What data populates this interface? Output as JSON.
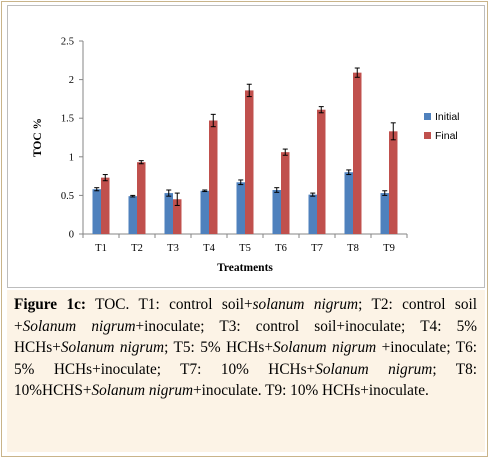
{
  "chart_data": {
    "type": "bar",
    "title": "",
    "xlabel": "Treatments",
    "ylabel": "TOC %",
    "ylim": [
      0,
      2.5
    ],
    "yticks": [
      "0",
      "0.5",
      "1",
      "1.5",
      "2",
      "2.5"
    ],
    "grid": false,
    "legend_position": "right",
    "categories": [
      "T1",
      "T2",
      "T3",
      "T4",
      "T5",
      "T6",
      "T7",
      "T8",
      "T9"
    ],
    "series": [
      {
        "name": "Initial",
        "color": "#4f81bd",
        "values": [
          0.58,
          0.49,
          0.53,
          0.56,
          0.67,
          0.57,
          0.51,
          0.8,
          0.53
        ],
        "errors": [
          0.02,
          0.01,
          0.04,
          0.01,
          0.03,
          0.03,
          0.02,
          0.03,
          0.03
        ]
      },
      {
        "name": "Final",
        "color": "#c0504d",
        "values": [
          0.73,
          0.93,
          0.45,
          1.47,
          1.86,
          1.06,
          1.61,
          2.09,
          1.33
        ],
        "errors": [
          0.04,
          0.02,
          0.08,
          0.08,
          0.08,
          0.04,
          0.04,
          0.06,
          0.11
        ]
      }
    ]
  },
  "caption": {
    "label": "Figure 1c:",
    "segments": [
      {
        "text": " TOC. T1: control soil+",
        "italic": false
      },
      {
        "text": "solanum nigrum",
        "italic": true
      },
      {
        "text": "; T2: control soil +",
        "italic": false
      },
      {
        "text": "Solanum nigrum",
        "italic": true
      },
      {
        "text": "+inoculate; T3: control soil+inoculate; T4: 5% HCHs+",
        "italic": false
      },
      {
        "text": "Solanum nigrum",
        "italic": true
      },
      {
        "text": "; T5: 5% HCHs+",
        "italic": false
      },
      {
        "text": "Solanum nigrum",
        "italic": true
      },
      {
        "text": " +inoculate; T6: 5% HCHs+inoculate; T7: 10% HCHs+",
        "italic": false
      },
      {
        "text": "Solanum nigrum",
        "italic": true
      },
      {
        "text": "; T8: 10%HCHS+",
        "italic": false
      },
      {
        "text": "Solanum nigrum",
        "italic": true
      },
      {
        "text": "+inoculate. T9: 10% HCHs+inoculate.",
        "italic": false
      }
    ]
  }
}
